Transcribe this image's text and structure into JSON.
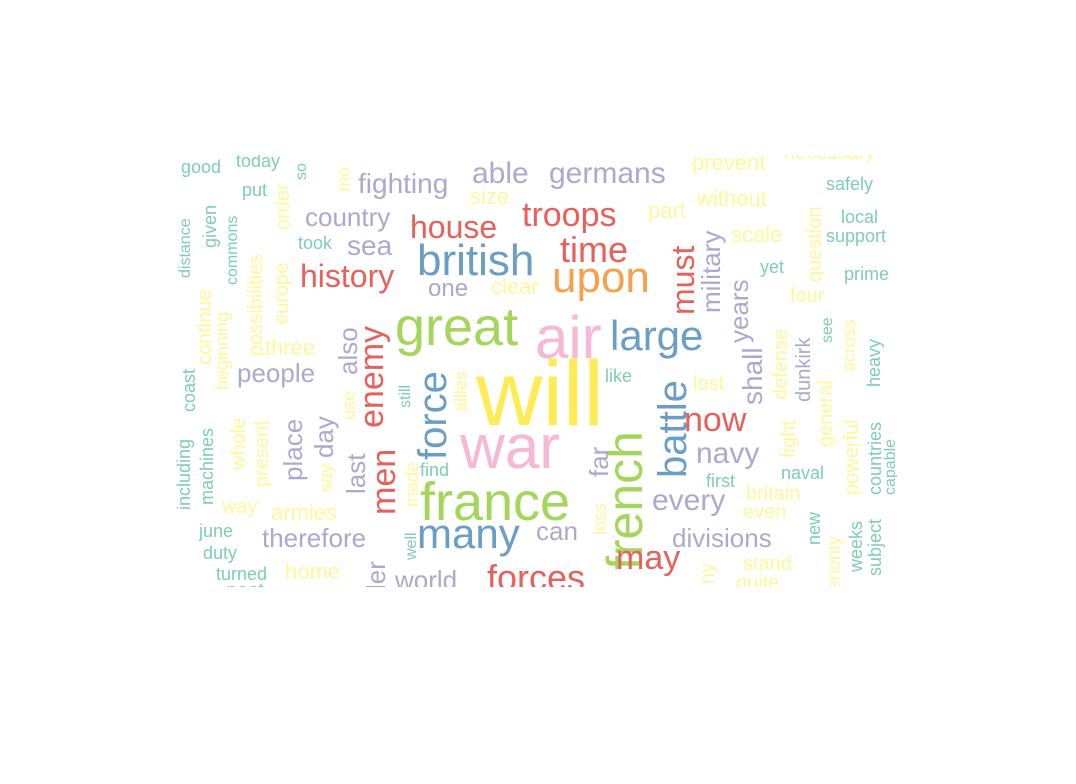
{
  "palette": {
    "c1": "#a6d854",
    "c2": "#fc8d62",
    "c3": "#8da0cb",
    "c4": "#e78ac3",
    "c5": "#ffd92f",
    "c6": "#66c2a5",
    "red": "#e8605a",
    "blue": "#6a9ec5",
    "orange": "#f5a14c",
    "purple": "#ada8cf",
    "yellow": "#fff79a",
    "teal": "#7ecdb4",
    "green": "#a3d65b",
    "pink": "#f7b8d6",
    "brightyellow": "#ffeb55"
  },
  "words": [
    {
      "text": "will",
      "color": "brightyellow"
    },
    {
      "text": "war",
      "color": "pink"
    },
    {
      "text": "air",
      "color": "pink"
    },
    {
      "text": "france",
      "color": "green"
    },
    {
      "text": "great",
      "color": "green"
    },
    {
      "text": "french",
      "color": "green"
    },
    {
      "text": "british",
      "color": "blue"
    },
    {
      "text": "upon",
      "color": "orange"
    },
    {
      "text": "large",
      "color": "blue"
    },
    {
      "text": "many",
      "color": "blue"
    },
    {
      "text": "force",
      "color": "blue"
    },
    {
      "text": "battle",
      "color": "blue"
    },
    {
      "text": "troops",
      "color": "red"
    },
    {
      "text": "time",
      "color": "red"
    },
    {
      "text": "house",
      "color": "red"
    },
    {
      "text": "history",
      "color": "red"
    },
    {
      "text": "enemy",
      "color": "red"
    },
    {
      "text": "men",
      "color": "red"
    },
    {
      "text": "forces",
      "color": "red"
    },
    {
      "text": "may",
      "color": "red"
    },
    {
      "text": "now",
      "color": "red"
    },
    {
      "text": "must",
      "color": "red"
    },
    {
      "text": "germans",
      "color": "purple"
    },
    {
      "text": "able",
      "color": "purple"
    },
    {
      "text": "fighting",
      "color": "purple"
    },
    {
      "text": "country",
      "color": "purple"
    },
    {
      "text": "sea",
      "color": "purple"
    },
    {
      "text": "one",
      "color": "purple"
    },
    {
      "text": "people",
      "color": "purple"
    },
    {
      "text": "also",
      "color": "purple"
    },
    {
      "text": "day",
      "color": "purple"
    },
    {
      "text": "place",
      "color": "purple"
    },
    {
      "text": "last",
      "color": "purple"
    },
    {
      "text": "therefore",
      "color": "purple"
    },
    {
      "text": "world",
      "color": "purple"
    },
    {
      "text": "can",
      "color": "purple"
    },
    {
      "text": "far",
      "color": "purple"
    },
    {
      "text": "every",
      "color": "purple"
    },
    {
      "text": "navy",
      "color": "purple"
    },
    {
      "text": "divisions",
      "color": "purple"
    },
    {
      "text": "military",
      "color": "purple"
    },
    {
      "text": "shall",
      "color": "purple"
    },
    {
      "text": "years",
      "color": "purple"
    },
    {
      "text": "ler",
      "color": "purple"
    },
    {
      "text": "prevent",
      "color": "yellow"
    },
    {
      "text": "necessary",
      "color": "yellow"
    },
    {
      "text": "size",
      "color": "yellow"
    },
    {
      "text": "part",
      "color": "yellow"
    },
    {
      "text": "without",
      "color": "yellow"
    },
    {
      "text": "scale",
      "color": "yellow"
    },
    {
      "text": "clear",
      "color": "yellow"
    },
    {
      "text": "three",
      "color": "yellow"
    },
    {
      "text": "possibilities",
      "color": "yellow"
    },
    {
      "text": "europe",
      "color": "yellow"
    },
    {
      "text": "order",
      "color": "yellow"
    },
    {
      "text": "continue",
      "color": "yellow"
    },
    {
      "text": "beginning",
      "color": "yellow"
    },
    {
      "text": "whole",
      "color": "yellow"
    },
    {
      "text": "present",
      "color": "yellow"
    },
    {
      "text": "way",
      "color": "yellow"
    },
    {
      "text": "armies",
      "color": "yellow"
    },
    {
      "text": "home",
      "color": "yellow"
    },
    {
      "text": "say",
      "color": "yellow"
    },
    {
      "text": "use",
      "color": "yellow"
    },
    {
      "text": "allies",
      "color": "yellow"
    },
    {
      "text": "made",
      "color": "yellow"
    },
    {
      "text": "loss",
      "color": "yellow"
    },
    {
      "text": "lost",
      "color": "yellow"
    },
    {
      "text": "defense",
      "color": "yellow"
    },
    {
      "text": "fight",
      "color": "yellow"
    },
    {
      "text": "four",
      "color": "yellow"
    },
    {
      "text": "question",
      "color": "yellow"
    },
    {
      "text": "general",
      "color": "yellow"
    },
    {
      "text": "powerful",
      "color": "yellow"
    },
    {
      "text": "across",
      "color": "yellow"
    },
    {
      "text": "britain",
      "color": "yellow"
    },
    {
      "text": "even",
      "color": "yellow"
    },
    {
      "text": "stand",
      "color": "yellow"
    },
    {
      "text": "quite",
      "color": "yellow"
    },
    {
      "text": "ny",
      "color": "yellow"
    },
    {
      "text": "eriority",
      "color": "yellow"
    },
    {
      "text": "mo",
      "color": "yellow"
    },
    {
      "text": "good",
      "color": "teal"
    },
    {
      "text": "today",
      "color": "teal"
    },
    {
      "text": "so",
      "color": "teal"
    },
    {
      "text": "put",
      "color": "teal"
    },
    {
      "text": "distance",
      "color": "teal"
    },
    {
      "text": "given",
      "color": "teal"
    },
    {
      "text": "commons",
      "color": "teal"
    },
    {
      "text": "took",
      "color": "teal"
    },
    {
      "text": "safely",
      "color": "teal"
    },
    {
      "text": "local",
      "color": "teal"
    },
    {
      "text": "support",
      "color": "teal"
    },
    {
      "text": "prime",
      "color": "teal"
    },
    {
      "text": "yet",
      "color": "teal"
    },
    {
      "text": "dunkirk",
      "color": "purple"
    },
    {
      "text": "see",
      "color": "teal"
    },
    {
      "text": "heavy",
      "color": "teal"
    },
    {
      "text": "like",
      "color": "teal"
    },
    {
      "text": "still",
      "color": "teal"
    },
    {
      "text": "coast",
      "color": "teal"
    },
    {
      "text": "including",
      "color": "teal"
    },
    {
      "text": "machines",
      "color": "teal"
    },
    {
      "text": "find",
      "color": "teal"
    },
    {
      "text": "well",
      "color": "teal"
    },
    {
      "text": "june",
      "color": "teal"
    },
    {
      "text": "duty",
      "color": "teal"
    },
    {
      "text": "turned",
      "color": "teal"
    },
    {
      "text": "first",
      "color": "teal"
    },
    {
      "text": "naval",
      "color": "teal"
    },
    {
      "text": "new",
      "color": "teal"
    },
    {
      "text": "weeks",
      "color": "teal"
    },
    {
      "text": "subject",
      "color": "teal"
    },
    {
      "text": "countries",
      "color": "teal"
    },
    {
      "text": "capable",
      "color": "teal"
    },
    {
      "text": "past",
      "color": "teal"
    }
  ]
}
